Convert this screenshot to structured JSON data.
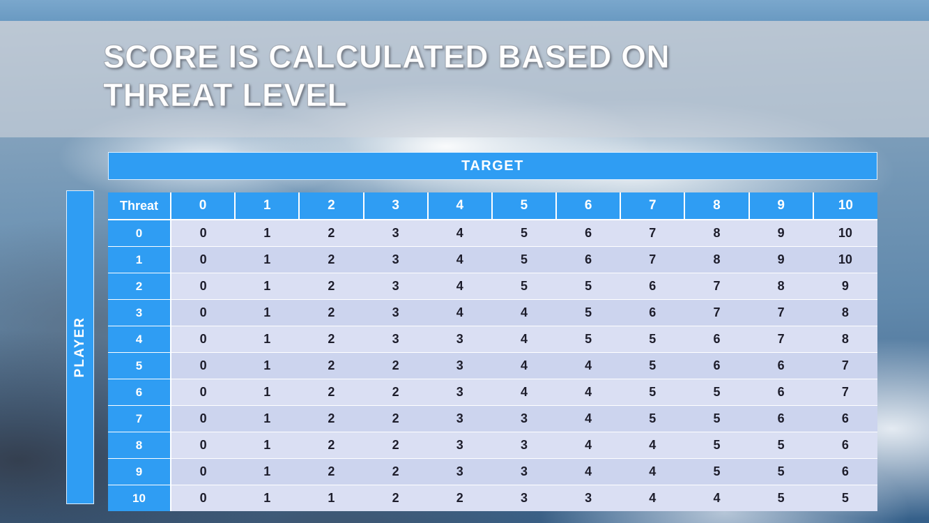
{
  "slide": {
    "title": "SCORE IS CALCULATED BASED ON THREAT LEVEL"
  },
  "matrix": {
    "target_label": "TARGET",
    "player_label": "PLAYER",
    "corner_label": "Threat",
    "col_headers": [
      "0",
      "1",
      "2",
      "3",
      "4",
      "5",
      "6",
      "7",
      "8",
      "9",
      "10"
    ],
    "rows": [
      {
        "label": "0",
        "values": [
          "0",
          "1",
          "2",
          "3",
          "4",
          "5",
          "6",
          "7",
          "8",
          "9",
          "10"
        ]
      },
      {
        "label": "1",
        "values": [
          "0",
          "1",
          "2",
          "3",
          "4",
          "5",
          "6",
          "7",
          "8",
          "9",
          "10"
        ]
      },
      {
        "label": "2",
        "values": [
          "0",
          "1",
          "2",
          "3",
          "4",
          "5",
          "5",
          "6",
          "7",
          "8",
          "9"
        ]
      },
      {
        "label": "3",
        "values": [
          "0",
          "1",
          "2",
          "3",
          "4",
          "4",
          "5",
          "6",
          "7",
          "7",
          "8"
        ]
      },
      {
        "label": "4",
        "values": [
          "0",
          "1",
          "2",
          "3",
          "3",
          "4",
          "5",
          "5",
          "6",
          "7",
          "8"
        ]
      },
      {
        "label": "5",
        "values": [
          "0",
          "1",
          "2",
          "2",
          "3",
          "4",
          "4",
          "5",
          "6",
          "6",
          "7"
        ]
      },
      {
        "label": "6",
        "values": [
          "0",
          "1",
          "2",
          "2",
          "3",
          "4",
          "4",
          "5",
          "5",
          "6",
          "7"
        ]
      },
      {
        "label": "7",
        "values": [
          "0",
          "1",
          "2",
          "2",
          "3",
          "3",
          "4",
          "5",
          "5",
          "6",
          "6"
        ]
      },
      {
        "label": "8",
        "values": [
          "0",
          "1",
          "2",
          "2",
          "3",
          "3",
          "4",
          "4",
          "5",
          "5",
          "6"
        ]
      },
      {
        "label": "9",
        "values": [
          "0",
          "1",
          "2",
          "2",
          "3",
          "3",
          "4",
          "4",
          "5",
          "5",
          "6"
        ]
      },
      {
        "label": "10",
        "values": [
          "0",
          "1",
          "1",
          "2",
          "2",
          "3",
          "3",
          "4",
          "4",
          "5",
          "5"
        ]
      }
    ]
  },
  "colors": {
    "header_blue": "#2f9df3",
    "band_light": "#dadff3",
    "band_dark": "#ccd4ee",
    "cell_text": "#1d1d2b",
    "title_text": "#ffffff"
  }
}
